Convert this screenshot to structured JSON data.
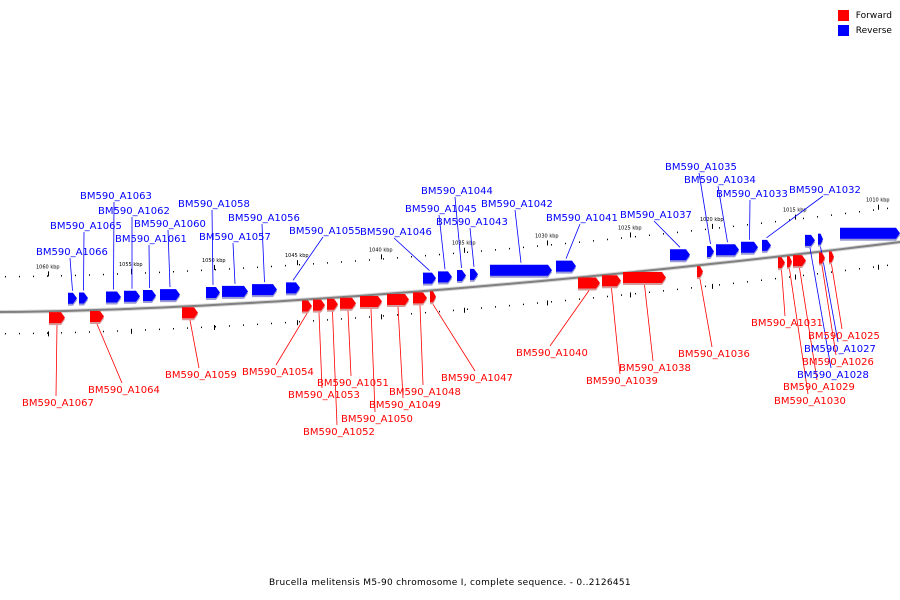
{
  "legend": {
    "items": [
      {
        "label": "Forward",
        "color": "#ff0000"
      },
      {
        "label": "Reverse",
        "color": "#0000ff"
      }
    ]
  },
  "caption": "Brucella melitensis M5-90 chromosome I, complete sequence. - 0..2126451",
  "colors": {
    "forward": "#ff0000",
    "reverse": "#0000ff",
    "backbone": "#808080"
  },
  "ticks": [
    "1060 kbp",
    "1055 kbp",
    "1050 kbp",
    "1045 kbp",
    "1040 kbp",
    "1035 kbp",
    "1030 kbp",
    "1025 kbp",
    "1020 kbp",
    "1015 kbp",
    "1010 kbp"
  ],
  "genes": [
    {
      "name": "BM590_A1067",
      "strand": "forward"
    },
    {
      "name": "BM590_A1066",
      "strand": "reverse"
    },
    {
      "name": "BM590_A1065",
      "strand": "reverse"
    },
    {
      "name": "BM590_A1064",
      "strand": "forward"
    },
    {
      "name": "BM590_A1063",
      "strand": "reverse"
    },
    {
      "name": "BM590_A1062",
      "strand": "reverse"
    },
    {
      "name": "BM590_A1061",
      "strand": "reverse"
    },
    {
      "name": "BM590_A1060",
      "strand": "reverse"
    },
    {
      "name": "BM590_A1059",
      "strand": "forward"
    },
    {
      "name": "BM590_A1058",
      "strand": "reverse"
    },
    {
      "name": "BM590_A1057",
      "strand": "reverse"
    },
    {
      "name": "BM590_A1056",
      "strand": "reverse"
    },
    {
      "name": "BM590_A1055",
      "strand": "reverse"
    },
    {
      "name": "BM590_A1054",
      "strand": "forward"
    },
    {
      "name": "BM590_A1053",
      "strand": "forward"
    },
    {
      "name": "BM590_A1052",
      "strand": "forward"
    },
    {
      "name": "BM590_A1051",
      "strand": "forward"
    },
    {
      "name": "BM590_A1050",
      "strand": "forward"
    },
    {
      "name": "BM590_A1049",
      "strand": "forward"
    },
    {
      "name": "BM590_A1048",
      "strand": "forward"
    },
    {
      "name": "BM590_A1047",
      "strand": "forward"
    },
    {
      "name": "BM590_A1046",
      "strand": "reverse"
    },
    {
      "name": "BM590_A1045",
      "strand": "reverse"
    },
    {
      "name": "BM590_A1044",
      "strand": "reverse"
    },
    {
      "name": "BM590_A1043",
      "strand": "reverse"
    },
    {
      "name": "BM590_A1042",
      "strand": "reverse"
    },
    {
      "name": "BM590_A1041",
      "strand": "reverse"
    },
    {
      "name": "BM590_A1040",
      "strand": "forward"
    },
    {
      "name": "BM590_A1039",
      "strand": "forward"
    },
    {
      "name": "BM590_A1038",
      "strand": "forward"
    },
    {
      "name": "BM590_A1037",
      "strand": "reverse"
    },
    {
      "name": "BM590_A1036",
      "strand": "forward"
    },
    {
      "name": "BM590_A1035",
      "strand": "reverse"
    },
    {
      "name": "BM590_A1034",
      "strand": "reverse"
    },
    {
      "name": "BM590_A1033",
      "strand": "reverse"
    },
    {
      "name": "BM590_A1032",
      "strand": "reverse"
    },
    {
      "name": "BM590_A1031",
      "strand": "forward"
    },
    {
      "name": "BM590_A1030",
      "strand": "forward"
    },
    {
      "name": "BM590_A1029",
      "strand": "forward"
    },
    {
      "name": "BM590_A1028",
      "strand": "reverse"
    },
    {
      "name": "BM590_A1027",
      "strand": "reverse"
    },
    {
      "name": "BM590_A1026",
      "strand": "forward"
    },
    {
      "name": "BM590_A1025",
      "strand": "forward"
    }
  ]
}
